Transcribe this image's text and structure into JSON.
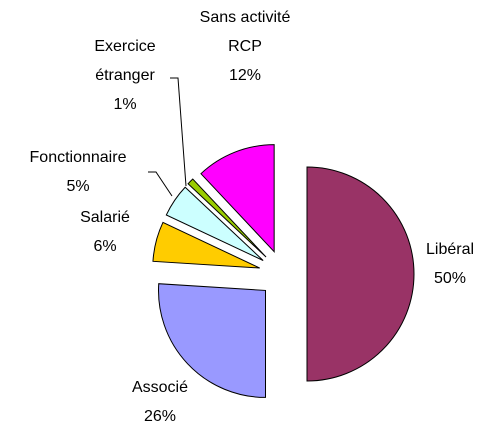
{
  "chart_data": {
    "type": "pie",
    "categories": [
      "Libéral",
      "Associé",
      "Salarié",
      "Fonctionnaire",
      "Exercice\nétranger",
      "Sans activité\nRCP"
    ],
    "values": [
      50,
      26,
      6,
      5,
      1,
      12
    ],
    "value_labels": [
      "50%",
      "26%",
      "6%",
      "5%",
      "1%",
      "12%"
    ],
    "colors": [
      "#993366",
      "#9999ff",
      "#ffcc00",
      "#ccffff",
      "#99cc00",
      "#ff00ff"
    ]
  }
}
